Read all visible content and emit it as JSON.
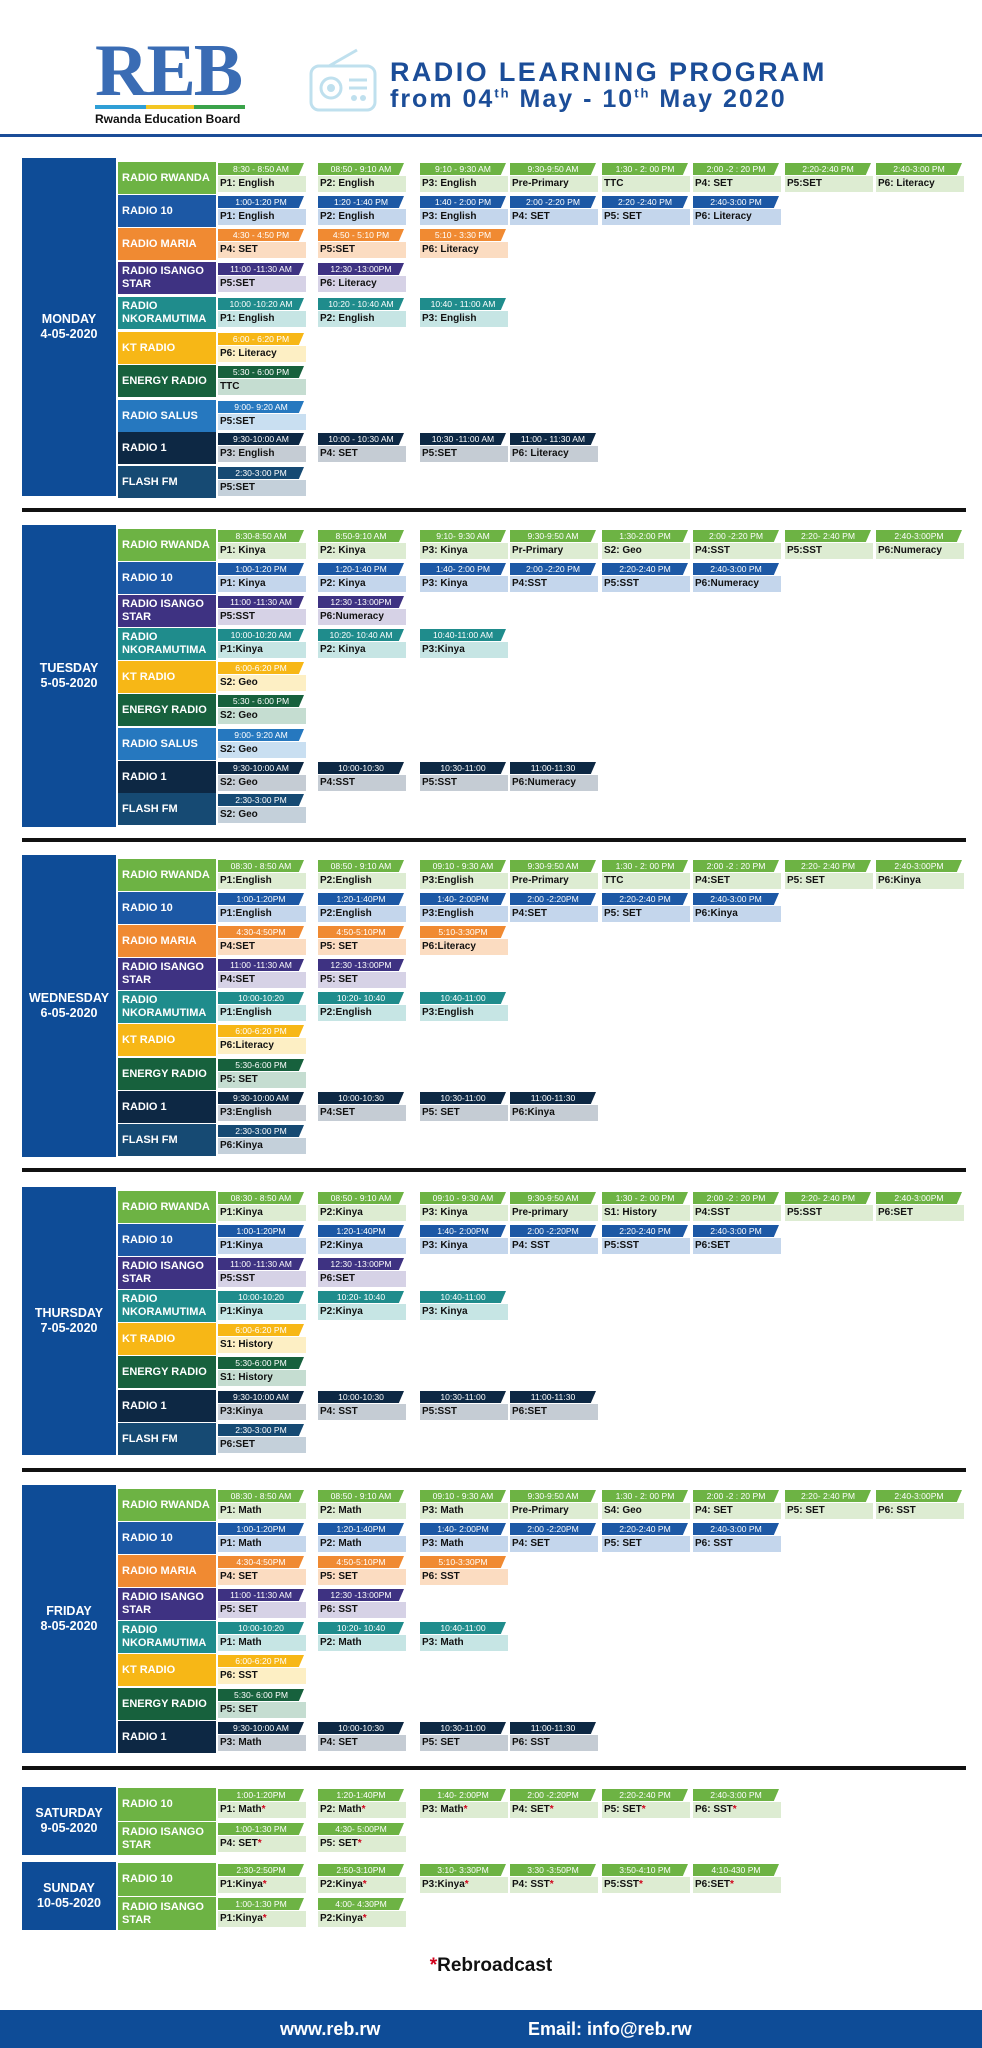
{
  "logo": {
    "text": "REB",
    "subtitle": "Rwanda Education Board"
  },
  "header": {
    "title": "RADIO LEARNING PROGRAM",
    "dates_pre": "from 04",
    "dates_sup1": "th",
    "dates_mid": " May - 10",
    "dates_sup2": "th",
    "dates_post": " May 2020"
  },
  "footnote": {
    "star": "*",
    "text": "Rebroadcast"
  },
  "footer": {
    "website": "www.reb.rw",
    "email": "Email: info@reb.rw"
  },
  "colors": {
    "RADIO RWANDA": [
      "#6db344",
      "#ddecd2"
    ],
    "RADIO 10": [
      "#1c58a5",
      "#c4d6ec"
    ],
    "RADIO MARIA": [
      "#f08a32",
      "#fbdcc1"
    ],
    "RADIO ISANGO STAR": [
      "#3e3282",
      "#d6d2e6"
    ],
    "RADIO NKORAMUTIMA": [
      "#1f8c8c",
      "#c6e5e4"
    ],
    "KT RADIO": [
      "#f7b716",
      "#fdefc4"
    ],
    "ENERGY RADIO": [
      "#17613d",
      "#c5ddd1"
    ],
    "RADIO SALUS": [
      "#2678bf",
      "#c9dff1"
    ],
    "RADIO 1": [
      "#0d2844",
      "#c5ccd4"
    ],
    "FLASH FM": [
      "#164a73",
      "#c4d0da"
    ],
    "SATURDAY": [
      "#6db344",
      "#ddecd2"
    ],
    "day_box": "#0e4c97"
  },
  "days": [
    {
      "day": "MONDAY",
      "date": "4-05-2020",
      "rows": [
        {
          "station": "RADIO RWANDA",
          "slots": [
            [
              "8:30 - 8:50 AM",
              "P1: English"
            ],
            [
              "08:50 - 9:10 AM",
              "P2: English"
            ],
            [
              "9:10 - 9:30 AM",
              "P3: English"
            ],
            [
              "9:30-9:50 AM",
              "Pre-Primary"
            ],
            [
              "1:30 - 2: 00 PM",
              "TTC"
            ],
            [
              "2:00 -2 : 20 PM",
              "P4: SET"
            ],
            [
              "2:20-2:40 PM",
              "P5:SET"
            ],
            [
              "2:40-3:00 PM",
              "P6: Literacy"
            ]
          ]
        },
        {
          "station": "RADIO 10",
          "slots": [
            [
              "1:00-1:20 PM",
              "P1: English"
            ],
            [
              "1:20 -1:40 PM",
              "P2: English"
            ],
            [
              "1:40 - 2:00 PM",
              "P3: English"
            ],
            [
              "2:00 -2:20 PM",
              "P4: SET"
            ],
            [
              "2:20 -2:40 PM",
              "P5: SET"
            ],
            [
              "2:40-3:00 PM",
              "P6: Literacy"
            ]
          ]
        },
        {
          "station": "RADIO MARIA",
          "slots": [
            [
              "4:30 - 4:50 PM",
              "P4: SET"
            ],
            [
              "4:50 - 5:10 PM",
              "P5:SET"
            ],
            [
              "5:10 - 3:30 PM",
              "P6: Literacy"
            ]
          ]
        },
        {
          "station": "RADIO ISANGO STAR",
          "slots": [
            [
              "11:00 -11:30 AM",
              "P5:SET"
            ],
            [
              "12:30 -13:00PM",
              "P6: Literacy"
            ]
          ]
        },
        {
          "station": "RADIO NKORAMUTIMA",
          "slots": [
            [
              "10:00 -10:20 AM",
              "P1: English"
            ],
            [
              "10:20 - 10:40 AM",
              "P2: English"
            ],
            [
              "10:40 - 11:00 AM",
              "P3: English"
            ]
          ]
        },
        {
          "station": "KT RADIO",
          "slots": [
            [
              "6:00 - 6:20 PM",
              "P6: Literacy"
            ]
          ]
        },
        {
          "station": "ENERGY RADIO",
          "slots": [
            [
              "5:30 - 6:00 PM",
              "TTC"
            ]
          ]
        },
        {
          "station": "RADIO SALUS",
          "slots": [
            [
              "9:00- 9:20 AM",
              "P5:SET"
            ]
          ]
        },
        {
          "station": "RADIO 1",
          "slots": [
            [
              "9:30-10:00 AM",
              "P3: English"
            ],
            [
              "10:00 - 10:30 AM",
              "P4: SET"
            ],
            [
              "10:30 -11:00 AM",
              "P5:SET"
            ],
            [
              "11:00 - 11:30 AM",
              "P6: Literacy"
            ]
          ]
        },
        {
          "station": "FLASH FM",
          "slots": [
            [
              "2:30-3:00 PM",
              "P5:SET"
            ]
          ]
        }
      ]
    },
    {
      "day": "TUESDAY",
      "date": "5-05-2020",
      "rows": [
        {
          "station": "RADIO RWANDA",
          "slots": [
            [
              "8:30-8:50 AM",
              "P1: Kinya"
            ],
            [
              "8:50-9:10 AM",
              "P2: Kinya"
            ],
            [
              "9:10- 9:30 AM",
              "P3: Kinya"
            ],
            [
              "9:30-9:50 AM",
              "Pr-Primary"
            ],
            [
              "1:30-2:00 PM",
              "S2: Geo"
            ],
            [
              "2:00 -2:20 PM",
              "P4:SST"
            ],
            [
              "2:20- 2:40 PM",
              "P5:SST"
            ],
            [
              "2:40-3:00PM",
              "P6:Numeracy"
            ]
          ]
        },
        {
          "station": "RADIO 10",
          "slots": [
            [
              "1:00-1:20 PM",
              "P1: Kinya"
            ],
            [
              "1:20-1:40 PM",
              "P2: Kinya"
            ],
            [
              "1:40- 2:00 PM",
              "P3: Kinya"
            ],
            [
              "2:00 -2:20 PM",
              "P4:SST"
            ],
            [
              "2:20-2:40 PM",
              "P5:SST"
            ],
            [
              "2:40-3:00 PM",
              "P6:Numeracy"
            ]
          ]
        },
        {
          "station": "RADIO ISANGO STAR",
          "slots": [
            [
              "11:00 -11:30 AM",
              "P5:SST"
            ],
            [
              "12:30 -13:00PM",
              "P6:Numeracy"
            ]
          ]
        },
        {
          "station": "RADIO NKORAMUTIMA",
          "slots": [
            [
              "10:00-10:20 AM",
              "P1:Kinya"
            ],
            [
              "10:20- 10:40 AM",
              "P2: Kinya"
            ],
            [
              "10:40-11:00 AM",
              "P3:Kinya"
            ]
          ]
        },
        {
          "station": "KT RADIO",
          "slots": [
            [
              "6:00-6:20 PM",
              "S2: Geo"
            ]
          ]
        },
        {
          "station": "ENERGY RADIO",
          "slots": [
            [
              "5:30 - 6:00 PM",
              "S2: Geo"
            ]
          ]
        },
        {
          "station": "RADIO SALUS",
          "slots": [
            [
              "9:00- 9:20 AM",
              "S2: Geo"
            ]
          ]
        },
        {
          "station": "RADIO 1",
          "slots": [
            [
              "9:30-10:00 AM",
              "S2: Geo"
            ],
            [
              "10:00-10:30",
              "P4:SST"
            ],
            [
              "10:30-11:00",
              "P5:SST"
            ],
            [
              "11:00-11:30",
              "P6:Numeracy"
            ]
          ]
        },
        {
          "station": "FLASH FM",
          "slots": [
            [
              "2:30-3:00 PM",
              "S2: Geo"
            ]
          ]
        }
      ]
    },
    {
      "day": "WEDNESDAY",
      "date": "6-05-2020",
      "rows": [
        {
          "station": "RADIO RWANDA",
          "slots": [
            [
              "08:30 - 8:50 AM",
              "P1:English"
            ],
            [
              "08:50 - 9:10 AM",
              "P2:English"
            ],
            [
              "09:10 - 9:30 AM",
              "P3:English"
            ],
            [
              "9:30-9:50 AM",
              "Pre-Primary"
            ],
            [
              "1:30 - 2: 00 PM",
              "TTC"
            ],
            [
              "2:00 -2 : 20 PM",
              "P4:SET"
            ],
            [
              "2:20- 2:40 PM",
              "P5: SET"
            ],
            [
              "2:40-3:00PM",
              "P6:Kinya"
            ]
          ]
        },
        {
          "station": "RADIO 10",
          "slots": [
            [
              "1:00-1:20PM",
              "P1:English"
            ],
            [
              "1:20-1:40PM",
              "P2:English"
            ],
            [
              "1:40- 2:00PM",
              "P3:English"
            ],
            [
              "2:00 -2:20PM",
              "P4:SET"
            ],
            [
              "2:20-2:40 PM",
              "P5: SET"
            ],
            [
              "2:40-3:00 PM",
              "P6:Kinya"
            ]
          ]
        },
        {
          "station": "RADIO MARIA",
          "slots": [
            [
              "4:30-4:50PM",
              "P4:SET"
            ],
            [
              "4:50-5:10PM",
              "P5: SET"
            ],
            [
              "5:10-3:30PM",
              "P6:Literacy"
            ]
          ]
        },
        {
          "station": "RADIO ISANGO STAR",
          "slots": [
            [
              "11:00 -11:30 AM",
              "P4:SET"
            ],
            [
              "12:30 -13:00PM",
              "P5: SET"
            ]
          ]
        },
        {
          "station": "RADIO NKORAMUTIMA",
          "slots": [
            [
              "10:00-10:20",
              "P1:English"
            ],
            [
              "10:20- 10:40",
              "P2:English"
            ],
            [
              "10:40-11:00",
              "P3:English"
            ]
          ]
        },
        {
          "station": "KT RADIO",
          "slots": [
            [
              "6:00-6:20 PM",
              "P6:Literacy"
            ]
          ]
        },
        {
          "station": "ENERGY RADIO",
          "slots": [
            [
              "5:30-6:00 PM",
              "P5: SET"
            ]
          ]
        },
        {
          "station": "RADIO 1",
          "slots": [
            [
              "9:30-10:00 AM",
              "P3:English"
            ],
            [
              "10:00-10:30",
              "P4:SET"
            ],
            [
              "10:30-11:00",
              "P5: SET"
            ],
            [
              "11:00-11:30",
              "P6:Kinya"
            ]
          ]
        },
        {
          "station": "FLASH FM",
          "slots": [
            [
              "2:30-3:00 PM",
              "P6:Kinya"
            ]
          ]
        }
      ]
    },
    {
      "day": "THURSDAY",
      "date": "7-05-2020",
      "rows": [
        {
          "station": "RADIO RWANDA",
          "slots": [
            [
              "08:30 - 8:50 AM",
              "P1:Kinya"
            ],
            [
              "08:50 - 9:10 AM",
              "P2:Kinya"
            ],
            [
              "09:10 - 9:30 AM",
              "P3: Kinya"
            ],
            [
              "9:30-9:50 AM",
              "Pre-primary"
            ],
            [
              "1:30 - 2: 00 PM",
              "S1: History"
            ],
            [
              "2:00 -2 : 20 PM",
              "P4:SST"
            ],
            [
              "2:20- 2:40 PM",
              "P5:SST"
            ],
            [
              "2:40-3:00PM",
              "P6:SET"
            ]
          ]
        },
        {
          "station": "RADIO 10",
          "slots": [
            [
              "1:00-1:20PM",
              "P1:Kinya"
            ],
            [
              "1:20-1:40PM",
              "P2:Kinya"
            ],
            [
              "1:40- 2:00PM",
              "P3: Kinya"
            ],
            [
              "2:00 -2:20PM",
              "P4: SST"
            ],
            [
              "2:20-2:40 PM",
              "P5:SST"
            ],
            [
              "2:40-3:00 PM",
              "P6:SET"
            ]
          ]
        },
        {
          "station": "RADIO ISANGO STAR",
          "slots": [
            [
              "11:00 -11:30 AM",
              "P5:SST"
            ],
            [
              "12:30 -13:00PM",
              "P6:SET"
            ]
          ]
        },
        {
          "station": "RADIO NKORAMUTIMA",
          "slots": [
            [
              "10:00-10:20",
              "P1:Kinya"
            ],
            [
              "10:20- 10:40",
              "P2:Kinya"
            ],
            [
              "10:40-11:00",
              "P3: Kinya"
            ]
          ]
        },
        {
          "station": "KT RADIO",
          "slots": [
            [
              "6:00-6:20 PM",
              "S1: History"
            ]
          ]
        },
        {
          "station": "ENERGY RADIO",
          "slots": [
            [
              "5:30-6:00 PM",
              "S1: History"
            ]
          ]
        },
        {
          "station": "RADIO 1",
          "slots": [
            [
              "9:30-10:00 AM",
              "P3:Kinya"
            ],
            [
              "10:00-10:30",
              "P4: SST"
            ],
            [
              "10:30-11:00",
              "P5:SST"
            ],
            [
              "11:00-11:30",
              "P6:SET"
            ]
          ]
        },
        {
          "station": "FLASH FM",
          "slots": [
            [
              "2:30-3:00 PM",
              "P6:SET"
            ]
          ]
        }
      ]
    },
    {
      "day": "FRIDAY",
      "date": "8-05-2020",
      "rows": [
        {
          "station": "RADIO RWANDA",
          "slots": [
            [
              "08:30 - 8:50 AM",
              "P1: Math"
            ],
            [
              "08:50 - 9:10 AM",
              "P2: Math"
            ],
            [
              "09:10 - 9:30 AM",
              "P3: Math"
            ],
            [
              "9:30-9:50 AM",
              "Pre-Primary"
            ],
            [
              "1:30 - 2: 00 PM",
              "S4: Geo"
            ],
            [
              "2:00 -2 : 20 PM",
              "P4: SET"
            ],
            [
              "2:20- 2:40 PM",
              "P5: SET"
            ],
            [
              "2:40-3:00PM",
              "P6: SST"
            ]
          ]
        },
        {
          "station": "RADIO 10",
          "slots": [
            [
              "1:00-1:20PM",
              "P1: Math"
            ],
            [
              "1:20-1:40PM",
              "P2: Math"
            ],
            [
              "1:40- 2:00PM",
              "P3: Math"
            ],
            [
              "2:00 -2:20PM",
              "P4: SET"
            ],
            [
              "2:20-2:40 PM",
              "P5: SET"
            ],
            [
              "2:40-3:00 PM",
              "P6: SST"
            ]
          ]
        },
        {
          "station": "RADIO MARIA",
          "slots": [
            [
              "4:30-4:50PM",
              "P4: SET"
            ],
            [
              "4:50-5:10PM",
              "P5: SET"
            ],
            [
              "5:10-3:30PM",
              "P6: SST"
            ]
          ]
        },
        {
          "station": "RADIO ISANGO STAR",
          "slots": [
            [
              "11:00 -11:30 AM",
              "P5: SET"
            ],
            [
              "12:30 -13:00PM",
              "P6: SST"
            ]
          ]
        },
        {
          "station": "RADIO NKORAMUTIMA",
          "slots": [
            [
              "10:00-10:20",
              "P1: Math"
            ],
            [
              "10:20- 10:40",
              "P2: Math"
            ],
            [
              "10:40-11:00",
              "P3: Math"
            ]
          ]
        },
        {
          "station": "KT RADIO",
          "slots": [
            [
              "6:00-6:20 PM",
              "P6: SST"
            ]
          ]
        },
        {
          "station": "ENERGY RADIO",
          "slots": [
            [
              "5:30- 6:00 PM",
              "P5: SET"
            ]
          ]
        },
        {
          "station": "RADIO 1",
          "slots": [
            [
              "9:30-10:00 AM",
              "P3: Math"
            ],
            [
              "10:00-10:30",
              "P4: SET"
            ],
            [
              "10:30-11:00",
              "P5: SET"
            ],
            [
              "11:00-11:30",
              "P6: SST"
            ]
          ]
        }
      ]
    },
    {
      "day": "SATURDAY",
      "date": "9-05-2020",
      "rows": [
        {
          "station": "RADIO 10",
          "slots": [
            [
              "1:00-1:20PM",
              "P1: Math*"
            ],
            [
              "1:20-1:40PM",
              "P2: Math*"
            ],
            [
              "1:40- 2:00PM",
              "P3: Math*"
            ],
            [
              "2:00 -2:20PM",
              "P4: SET*"
            ],
            [
              "2:20-2:40 PM",
              "P5: SET*"
            ],
            [
              "2:40-3:00 PM",
              "P6: SST*"
            ]
          ]
        },
        {
          "station": "RADIO ISANGO STAR",
          "slots": [
            [
              "1:00-1:30 PM",
              "P4: SET*"
            ],
            [
              "4:30- 5:00PM",
              "P5: SET*"
            ]
          ]
        }
      ]
    },
    {
      "day": "SUNDAY",
      "date": "10-05-2020",
      "rows": [
        {
          "station": "RADIO 10",
          "slots": [
            [
              "2:30-2:50PM",
              "P1:Kinya*"
            ],
            [
              "2:50-3:10PM",
              "P2:Kinya*"
            ],
            [
              "3:10- 3:30PM",
              "P3:Kinya*"
            ],
            [
              "3:30 -3:50PM",
              "P4: SST*"
            ],
            [
              "3:50-4:10 PM",
              "P5:SST*"
            ],
            [
              "4:10-430 PM",
              "P6:SET*"
            ]
          ]
        },
        {
          "station": "RADIO ISANGO STAR",
          "slots": [
            [
              "1:00-1:30 PM",
              "P1:Kinya*"
            ],
            [
              "4:00- 4:30PM",
              "P2:Kinya*"
            ]
          ]
        }
      ]
    }
  ]
}
